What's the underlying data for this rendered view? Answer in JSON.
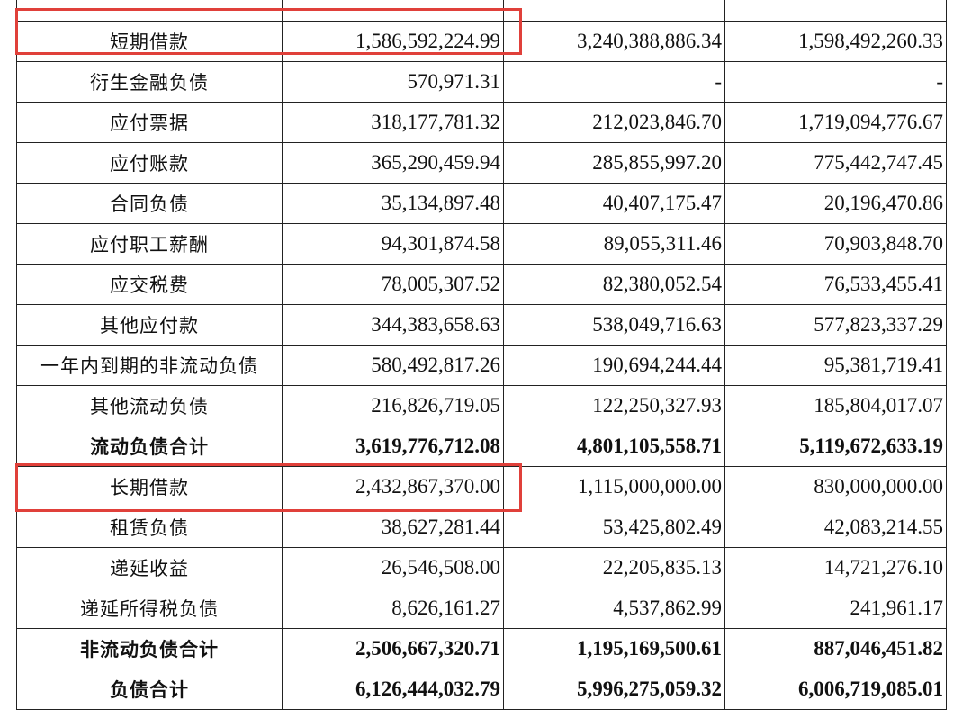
{
  "table": {
    "rows": [
      {
        "label": "",
        "v1": "",
        "v2": "",
        "v3": "",
        "bold": false,
        "highlight": false
      },
      {
        "label": "短期借款",
        "v1": "1,586,592,224.99",
        "v2": "3,240,388,886.34",
        "v3": "1,598,492,260.33",
        "bold": false,
        "highlight": true
      },
      {
        "label": "衍生金融负债",
        "v1": "570,971.31",
        "v2": "-",
        "v3": "-",
        "bold": false,
        "highlight": false
      },
      {
        "label": "应付票据",
        "v1": "318,177,781.32",
        "v2": "212,023,846.70",
        "v3": "1,719,094,776.67",
        "bold": false,
        "highlight": false
      },
      {
        "label": "应付账款",
        "v1": "365,290,459.94",
        "v2": "285,855,997.20",
        "v3": "775,442,747.45",
        "bold": false,
        "highlight": false
      },
      {
        "label": "合同负债",
        "v1": "35,134,897.48",
        "v2": "40,407,175.47",
        "v3": "20,196,470.86",
        "bold": false,
        "highlight": false
      },
      {
        "label": "应付职工薪酬",
        "v1": "94,301,874.58",
        "v2": "89,055,311.46",
        "v3": "70,903,848.70",
        "bold": false,
        "highlight": false
      },
      {
        "label": "应交税费",
        "v1": "78,005,307.52",
        "v2": "82,380,052.54",
        "v3": "76,533,455.41",
        "bold": false,
        "highlight": false
      },
      {
        "label": "其他应付款",
        "v1": "344,383,658.63",
        "v2": "538,049,716.63",
        "v3": "577,823,337.29",
        "bold": false,
        "highlight": false
      },
      {
        "label": "一年内到期的非流动负债",
        "v1": "580,492,817.26",
        "v2": "190,694,244.44",
        "v3": "95,381,719.41",
        "bold": false,
        "highlight": false
      },
      {
        "label": "其他流动负债",
        "v1": "216,826,719.05",
        "v2": "122,250,327.93",
        "v3": "185,804,017.07",
        "bold": false,
        "highlight": false
      },
      {
        "label": "流动负债合计",
        "v1": "3,619,776,712.08",
        "v2": "4,801,105,558.71",
        "v3": "5,119,672,633.19",
        "bold": true,
        "highlight": false
      },
      {
        "label": "长期借款",
        "v1": "2,432,867,370.00",
        "v2": "1,115,000,000.00",
        "v3": "830,000,000.00",
        "bold": false,
        "highlight": true
      },
      {
        "label": "租赁负债",
        "v1": "38,627,281.44",
        "v2": "53,425,802.49",
        "v3": "42,083,214.55",
        "bold": false,
        "highlight": false
      },
      {
        "label": "递延收益",
        "v1": "26,546,508.00",
        "v2": "22,205,835.13",
        "v3": "14,721,276.10",
        "bold": false,
        "highlight": false
      },
      {
        "label": "递延所得税负债",
        "v1": "8,626,161.27",
        "v2": "4,537,862.99",
        "v3": "241,961.17",
        "bold": false,
        "highlight": false
      },
      {
        "label": "非流动负债合计",
        "v1": "2,506,667,320.71",
        "v2": "1,195,169,500.61",
        "v3": "887,046,451.82",
        "bold": true,
        "highlight": false
      },
      {
        "label": "负债合计",
        "v1": "6,126,444,032.79",
        "v2": "5,996,275,059.32",
        "v3": "6,006,719,085.01",
        "bold": true,
        "highlight": false
      }
    ]
  },
  "colors": {
    "highlight_border": "#e0403a",
    "grid": "#222222",
    "text": "#111111",
    "background": "#ffffff"
  }
}
